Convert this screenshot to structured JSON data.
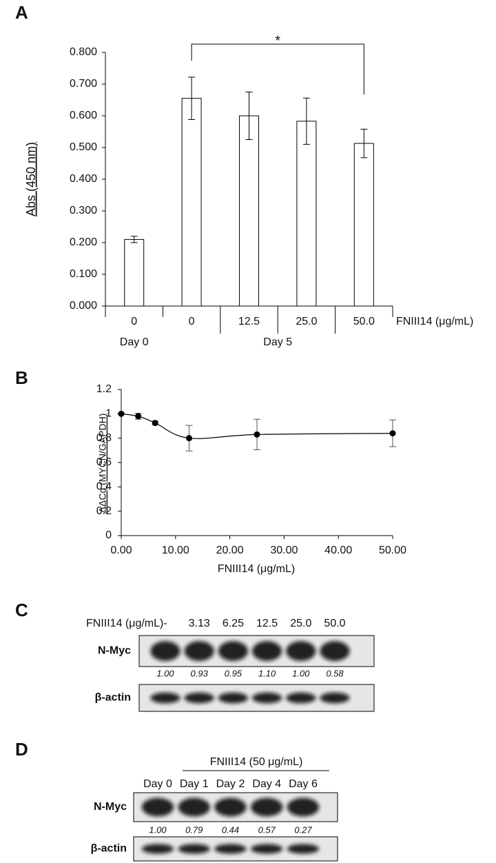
{
  "chart_data": [
    {
      "type": "bar",
      "label": "A",
      "y_label": "Abs (450 nm)",
      "x_label": "FNIII14  (μg/mL)",
      "categories": [
        "0",
        "0",
        "12.5",
        "25.0",
        "50.0"
      ],
      "groups": [
        "Day 0",
        "Day 5"
      ],
      "values": [
        0.21,
        0.655,
        0.6,
        0.583,
        0.513
      ],
      "errors": [
        0.01,
        0.067,
        0.075,
        0.073,
        0.045
      ],
      "color": "#ffffff",
      "annotation": "*",
      "ylim": [
        0,
        0.8
      ],
      "yticks": [
        {
          "value": 0,
          "label": "0.000"
        },
        {
          "value": 0.1,
          "label": "0.100"
        },
        {
          "value": 0.2,
          "label": "0.200"
        },
        {
          "value": 0.3,
          "label": "0.300"
        },
        {
          "value": 0.4,
          "label": "0.400"
        },
        {
          "value": 0.5,
          "label": "0.500"
        },
        {
          "value": 0.6,
          "label": "0.600"
        },
        {
          "value": 0.7,
          "label": "0.700"
        },
        {
          "value": 0.8,
          "label": "0.800"
        }
      ]
    },
    {
      "type": "line",
      "label": "B",
      "y_label": "ΔΔCq (MYCN/GAPDH)",
      "x_label": "FNIII14  (μg/mL)",
      "x": [
        0,
        3.13,
        6.25,
        12.5,
        25,
        50
      ],
      "values": [
        1.0,
        0.98,
        0.925,
        0.8,
        0.83,
        0.84
      ],
      "errors": [
        0.005,
        0.025,
        0.015,
        0.105,
        0.125,
        0.11
      ],
      "color": "#000000",
      "xlim": [
        0,
        50
      ],
      "ylim": [
        0,
        1.2
      ],
      "xticks": [
        {
          "value": 0,
          "label": "0.00"
        },
        {
          "value": 10,
          "label": "10.00"
        },
        {
          "value": 20,
          "label": "20.00"
        },
        {
          "value": 30,
          "label": "30.00"
        },
        {
          "value": 40,
          "label": "40.00"
        },
        {
          "value": 50,
          "label": "50.00"
        }
      ],
      "yticks": [
        0,
        0.2,
        0.4,
        0.6,
        0.8,
        1,
        1.2
      ]
    }
  ],
  "blots": [
    {
      "label": "C",
      "treatment_label": "FNIII14  (μg/mL)",
      "lanes": [
        "-",
        "3.13",
        "6.25",
        "12.5",
        "25.0",
        "50.0"
      ],
      "rows": [
        {
          "name": "N-Myc",
          "quantification": [
            "1.00",
            "0.93",
            "0.95",
            "1.10",
            "1.00",
            "0.58"
          ]
        },
        {
          "name": "β-actin"
        }
      ]
    },
    {
      "label": "D",
      "treatment_label": "FNIII14  (50 μg/mL)",
      "lanes": [
        "Day 0",
        "Day 1",
        "Day 2",
        "Day 4",
        "Day 6"
      ],
      "rows": [
        {
          "name": "N-Myc",
          "quantification": [
            "1.00",
            "0.79",
            "0.44",
            "0.57",
            "0.27"
          ]
        },
        {
          "name": "β-actin"
        }
      ]
    }
  ]
}
